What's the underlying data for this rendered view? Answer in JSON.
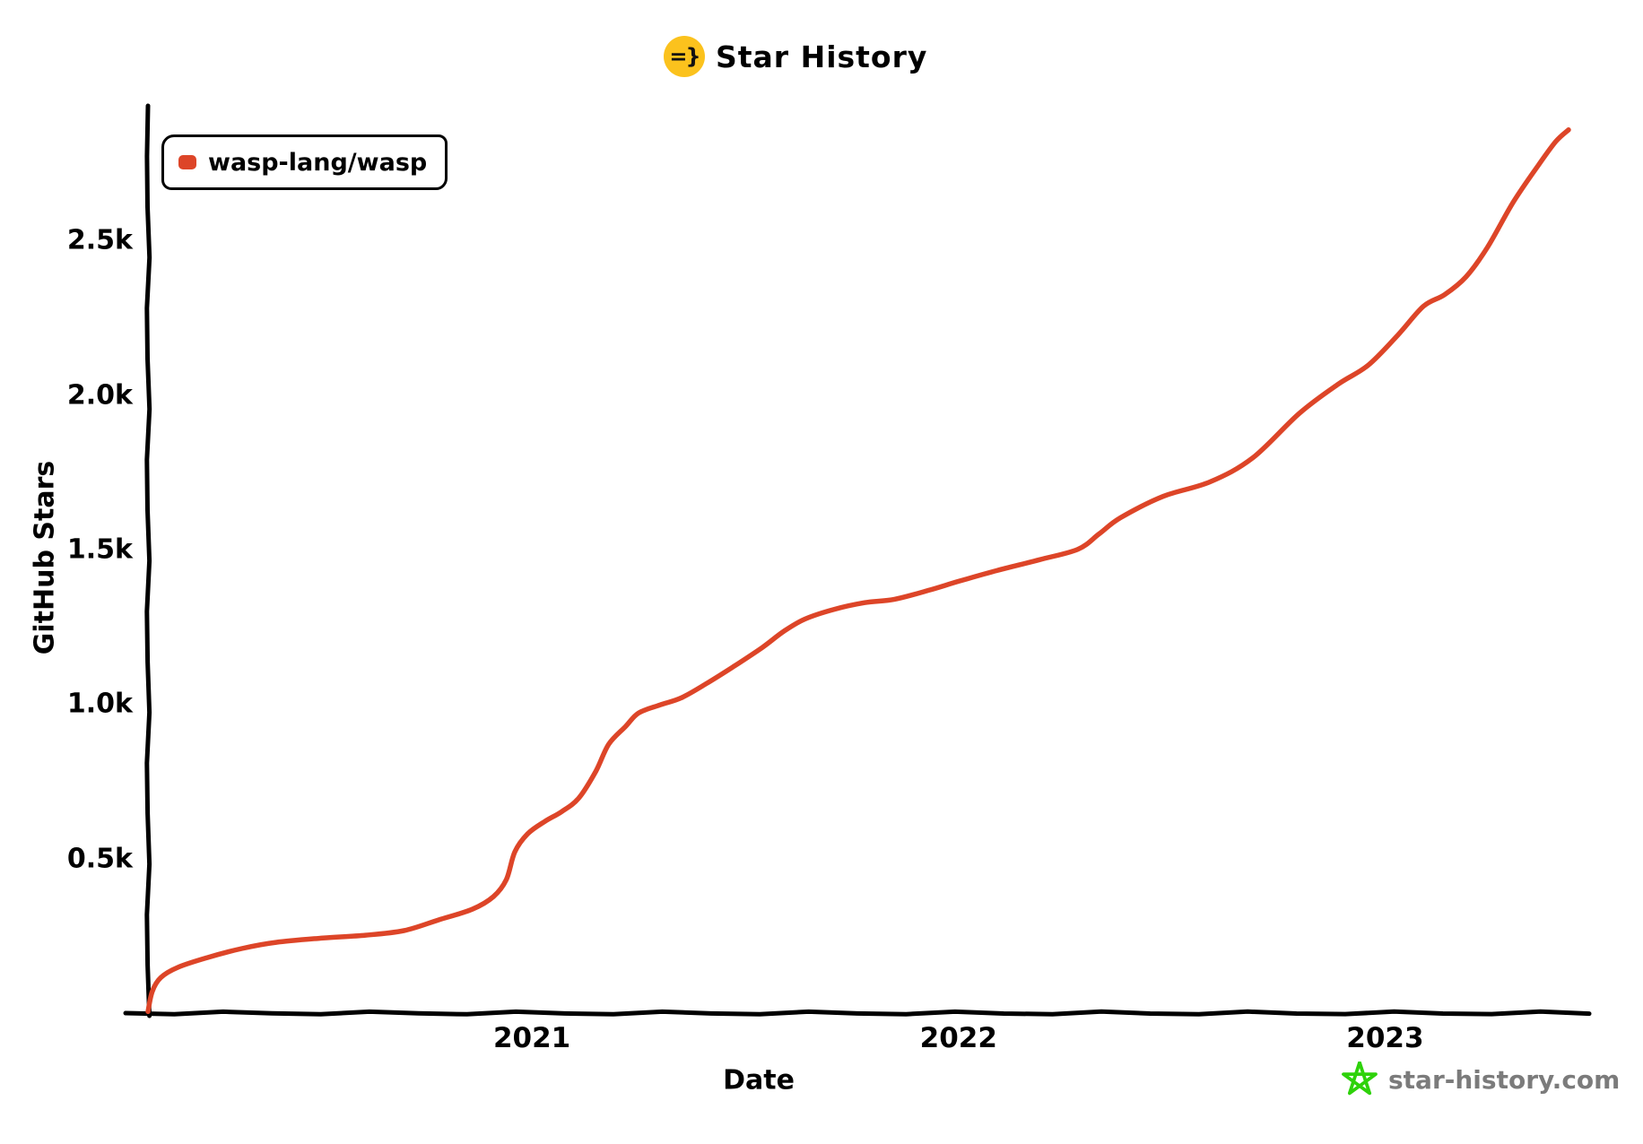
{
  "title": {
    "text": "Star History",
    "icon_glyph": "=}",
    "icon_bg": "#fbc21d"
  },
  "legend": {
    "series_label": "wasp-lang/wasp",
    "marker_color": "#dd4528"
  },
  "axes": {
    "y_label": "GitHub Stars",
    "x_label": "Date",
    "y_ticks": [
      {
        "value": 500,
        "label": "0.5k"
      },
      {
        "value": 1000,
        "label": "1.0k"
      },
      {
        "value": 1500,
        "label": "1.5k"
      },
      {
        "value": 2000,
        "label": "2.0k"
      },
      {
        "value": 2500,
        "label": "2.5k"
      }
    ],
    "x_ticks": [
      {
        "value": 2021,
        "label": "2021"
      },
      {
        "value": 2022,
        "label": "2022"
      },
      {
        "value": 2023,
        "label": "2023"
      }
    ]
  },
  "watermark": {
    "text": "star-history.com",
    "text_color": "#7b7b7b",
    "star_color": "#2ed20a"
  },
  "colors": {
    "line": "#dd4528",
    "axis": "#000000",
    "background": "#ffffff"
  },
  "chart_data": {
    "type": "line",
    "title": "Star History",
    "xlabel": "Date",
    "ylabel": "GitHub Stars",
    "x_unit": "decimal_year",
    "xlim": [
      2020.1,
      2023.47
    ],
    "ylim": [
      0,
      2930
    ],
    "grid": false,
    "legend_position": "top-left",
    "style": "xkcd-hand-drawn",
    "series": [
      {
        "name": "wasp-lang/wasp",
        "color": "#dd4528",
        "points": [
          [
            2020.1,
            5
          ],
          [
            2020.11,
            70
          ],
          [
            2020.13,
            115
          ],
          [
            2020.17,
            148
          ],
          [
            2020.24,
            180
          ],
          [
            2020.32,
            209
          ],
          [
            2020.4,
            229
          ],
          [
            2020.51,
            243
          ],
          [
            2020.61,
            252
          ],
          [
            2020.7,
            267
          ],
          [
            2020.78,
            301
          ],
          [
            2020.86,
            336
          ],
          [
            2020.91,
            377
          ],
          [
            2020.94,
            432
          ],
          [
            2020.96,
            522
          ],
          [
            2020.99,
            580
          ],
          [
            2021.03,
            620
          ],
          [
            2021.07,
            652
          ],
          [
            2021.11,
            696
          ],
          [
            2021.15,
            783
          ],
          [
            2021.18,
            870
          ],
          [
            2021.22,
            928
          ],
          [
            2021.25,
            971
          ],
          [
            2021.3,
            997
          ],
          [
            2021.35,
            1020
          ],
          [
            2021.41,
            1067
          ],
          [
            2021.47,
            1119
          ],
          [
            2021.54,
            1183
          ],
          [
            2021.59,
            1235
          ],
          [
            2021.64,
            1275
          ],
          [
            2021.71,
            1307
          ],
          [
            2021.78,
            1328
          ],
          [
            2021.85,
            1339
          ],
          [
            2021.93,
            1368
          ],
          [
            2022.0,
            1397
          ],
          [
            2022.09,
            1432
          ],
          [
            2022.19,
            1467
          ],
          [
            2022.28,
            1501
          ],
          [
            2022.33,
            1551
          ],
          [
            2022.38,
            1603
          ],
          [
            2022.48,
            1672
          ],
          [
            2022.59,
            1719
          ],
          [
            2022.69,
            1797
          ],
          [
            2022.8,
            1942
          ],
          [
            2022.89,
            2035
          ],
          [
            2022.96,
            2096
          ],
          [
            2023.03,
            2194
          ],
          [
            2023.09,
            2287
          ],
          [
            2023.14,
            2325
          ],
          [
            2023.19,
            2383
          ],
          [
            2023.24,
            2478
          ],
          [
            2023.3,
            2623
          ],
          [
            2023.36,
            2745
          ],
          [
            2023.4,
            2820
          ],
          [
            2023.43,
            2858
          ]
        ]
      }
    ]
  }
}
